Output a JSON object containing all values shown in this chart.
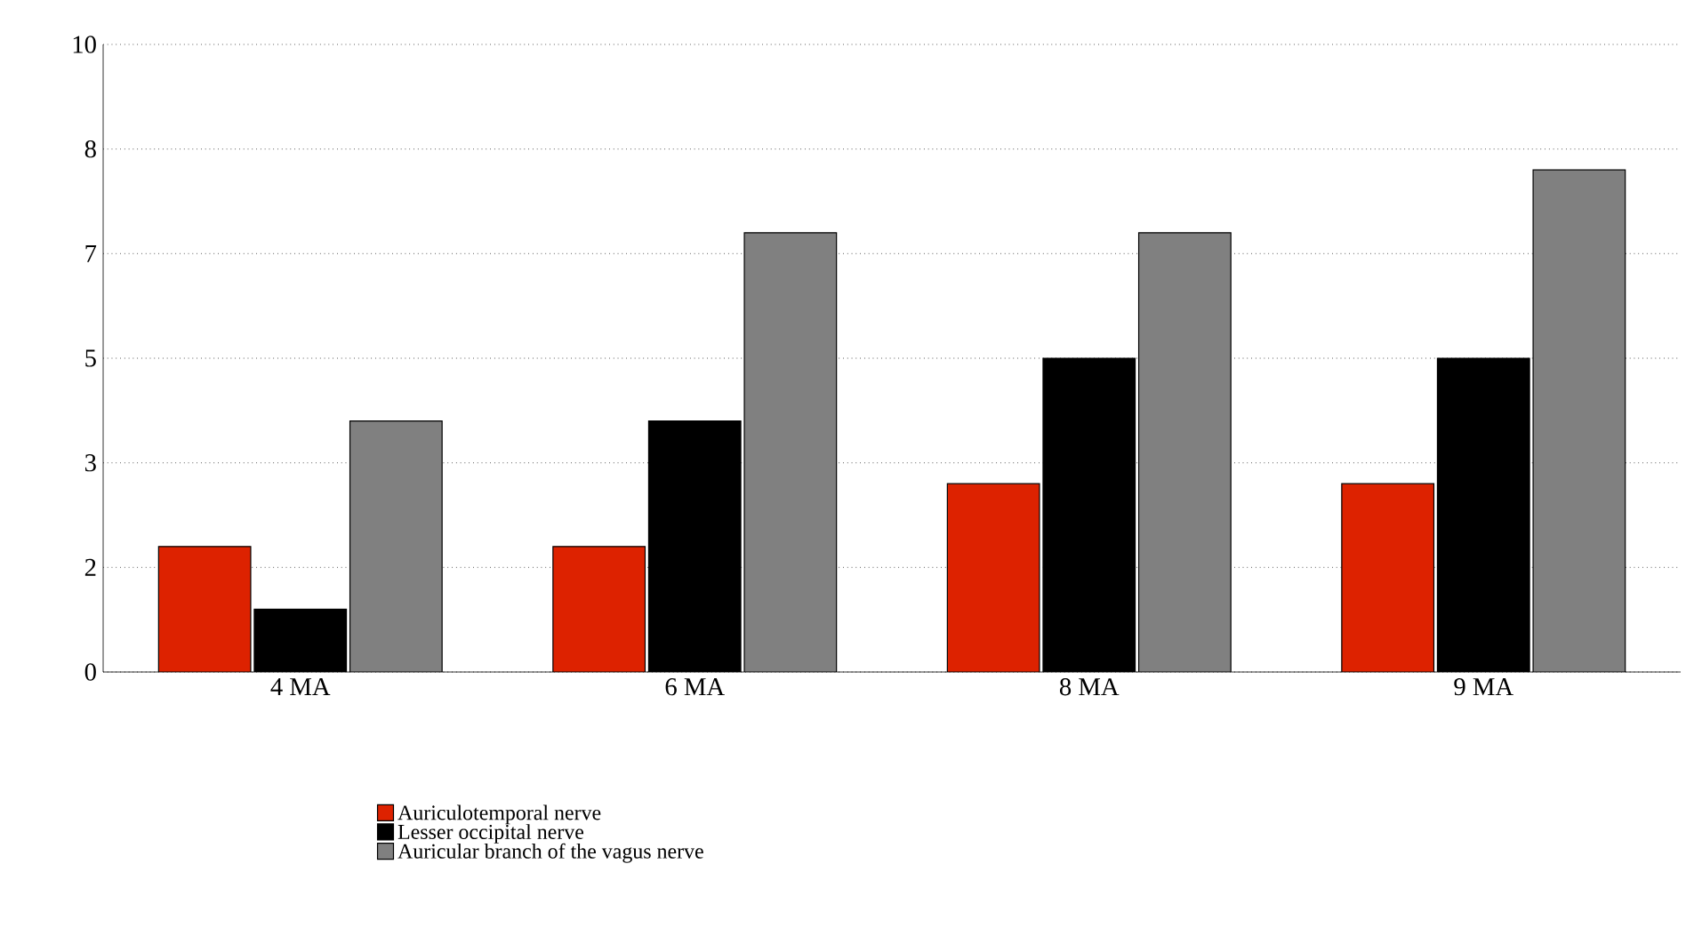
{
  "chart_data": {
    "type": "bar",
    "categories": [
      "4 MA",
      "6 MA",
      "8 MA",
      "9 MA"
    ],
    "series": [
      {
        "name": "Auriculotemporal nerve",
        "color": "#dd2200",
        "values": [
          2,
          2,
          3,
          3
        ]
      },
      {
        "name": "Lesser occipital nerve",
        "color": "#000000",
        "values": [
          1,
          4,
          5,
          5
        ]
      },
      {
        "name": "Auricular branch of the vagus nerve",
        "color": "#808080",
        "values": [
          4,
          7,
          7,
          8
        ]
      }
    ],
    "ylim": [
      0,
      10
    ],
    "yticks": [
      0,
      {
        "value": 1.667,
        "label": "2"
      },
      {
        "value": 3.333,
        "label": "3"
      },
      5,
      {
        "value": 6.667,
        "label": "7"
      },
      {
        "value": 8.333,
        "label": "8"
      },
      10
    ],
    "grid": "y",
    "legend": "bottom"
  }
}
